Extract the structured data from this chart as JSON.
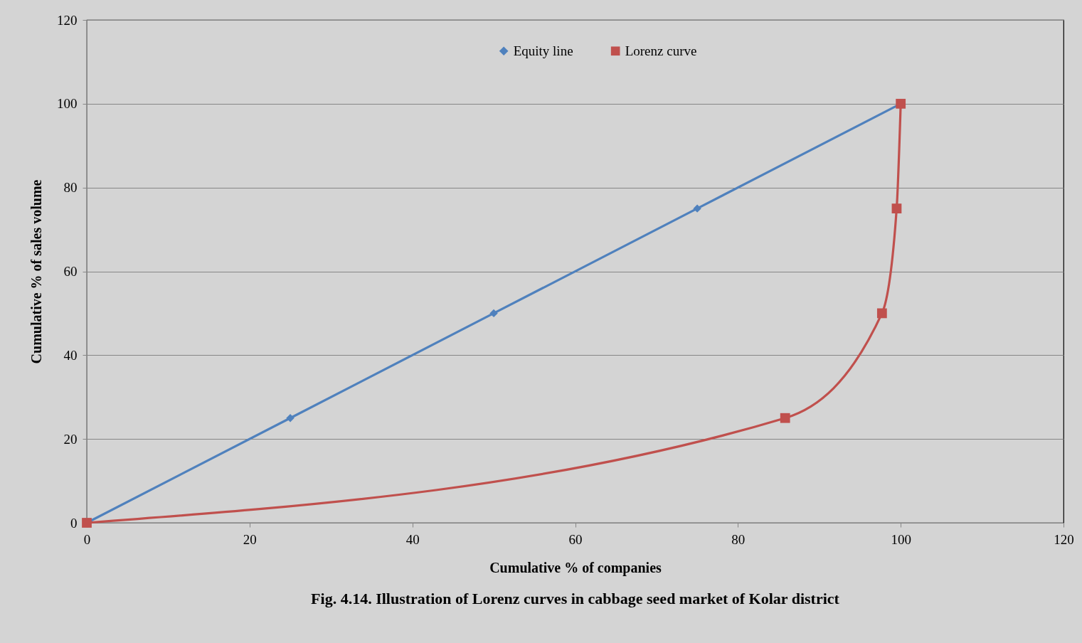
{
  "chart_data": {
    "type": "line",
    "title": "Fig. 4.14. Illustration of Lorenz curves in cabbage seed market of Kolar district",
    "xlabel": "Cumulative % of companies",
    "ylabel": "Cumulative % of sales volume",
    "series": [
      {
        "name": "Equity line",
        "color": "#4f81bd",
        "marker": "diamond",
        "x": [
          0,
          25,
          50,
          75,
          100
        ],
        "values": [
          0,
          25,
          50,
          75,
          100
        ]
      },
      {
        "name": "Lorenz curve",
        "color": "#c0504d",
        "marker": "square",
        "x": [
          0,
          85.8,
          97.7,
          99.5,
          100
        ],
        "values": [
          0,
          25,
          50,
          75,
          100
        ]
      }
    ],
    "xlim": [
      0,
      120
    ],
    "xticks": [
      0,
      20,
      40,
      60,
      80,
      100,
      120
    ],
    "ylim": [
      0,
      120
    ],
    "yticks": [
      0,
      20,
      40,
      60,
      80,
      100,
      120
    ],
    "grid": "y",
    "legend": "top"
  }
}
